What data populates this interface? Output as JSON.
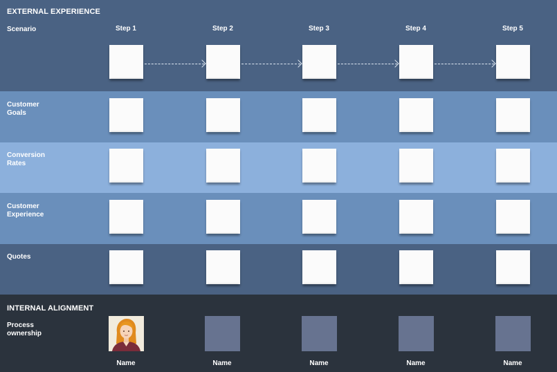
{
  "sections": {
    "external": "EXTERNAL EXPERIENCE",
    "internal": "INTERNAL ALIGNMENT"
  },
  "rows": {
    "scenario": "Scenario",
    "goals": "Customer\nGoals",
    "conversion": "Conversion\nRates",
    "cx": "Customer\nExperience",
    "quotes": "Quotes",
    "ownership": "Process\nownership"
  },
  "steps": [
    "Step 1",
    "Step 2",
    "Step 3",
    "Step 4",
    "Step 5"
  ],
  "owners": [
    "Name",
    "Name",
    "Name",
    "Name",
    "Name"
  ],
  "colors": {
    "scenario_band": "#4a6283",
    "goals_band": "#6a8fbb",
    "conversion_band": "#8cb0dc",
    "cx_band": "#6a8fbb",
    "quotes_band": "#4a6283",
    "internal_band": "#2b333d",
    "note": "#fbfbfb",
    "avatar_placeholder": "#677390"
  },
  "icons": {
    "avatar": "person-avatar-icon",
    "arrow": "dashed-arrow-icon"
  }
}
